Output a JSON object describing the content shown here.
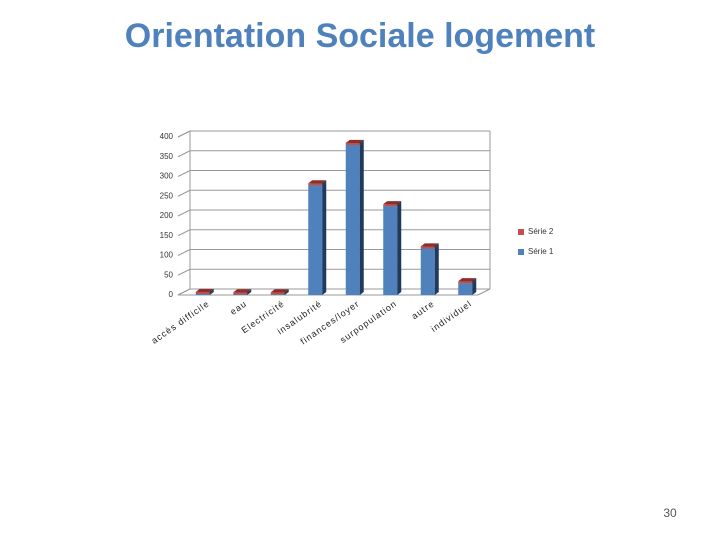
{
  "chart_data": {
    "type": "bar",
    "title": "Orientation Sociale logement",
    "categories": [
      "accès difficile",
      "eau",
      "Electricité",
      "insalubrité",
      "finances/loyer",
      "surpopulation",
      "autre",
      "individuel"
    ],
    "series": [
      {
        "name": "Série 1",
        "color": "#4f81bd",
        "values": [
          3,
          2,
          2,
          278,
          380,
          225,
          118,
          30
        ]
      },
      {
        "name": "Série 2",
        "color": "#c0504d",
        "values": [
          5,
          5,
          5,
          5,
          5,
          5,
          5,
          5
        ]
      }
    ],
    "stacked": true,
    "ylim": [
      0,
      400
    ],
    "yticks": [
      0,
      50,
      100,
      150,
      200,
      250,
      300,
      350,
      400
    ],
    "grid": true
  },
  "page_number": "30"
}
